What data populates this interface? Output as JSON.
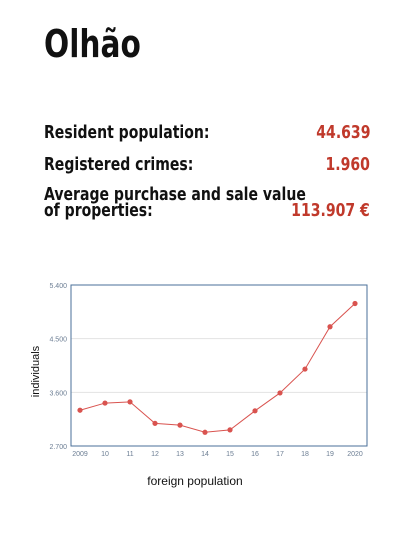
{
  "title": "Olhão",
  "stats": [
    {
      "label": "Resident population:",
      "value": "44.639"
    },
    {
      "label": "Registered crimes:",
      "value": "1.960"
    },
    {
      "label_lines": [
        "Average purchase and sale value",
        "of properties:"
      ],
      "value": "113.907 €"
    }
  ],
  "colors": {
    "accent": "#c0392b",
    "line": "#d9534f",
    "axis": "#4a6f99",
    "grid": "#e3e3e3"
  },
  "chart_data": {
    "type": "line",
    "title": "",
    "xlabel": "foreign population",
    "ylabel": "individuals",
    "categories": [
      "2009",
      "10",
      "11",
      "12",
      "13",
      "14",
      "15",
      "16",
      "17",
      "18",
      "19",
      "2020"
    ],
    "series": [
      {
        "values": [
          3300,
          3420,
          3440,
          3080,
          3050,
          2930,
          2970,
          3290,
          3590,
          3990,
          4700,
          5090
        ]
      }
    ],
    "ylim": [
      2700,
      5400
    ],
    "yticks": [
      2700,
      3600,
      4500,
      5400
    ],
    "ytick_labels": [
      "2.700",
      "3.600",
      "4.500",
      "5.400"
    ],
    "grid": true
  }
}
